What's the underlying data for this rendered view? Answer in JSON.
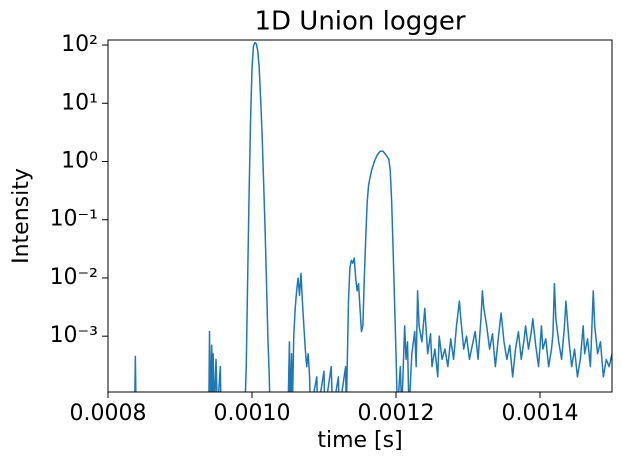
{
  "chart_data": {
    "type": "line",
    "title": "1D Union logger",
    "x_label": "time [s]",
    "y_label": "Intensity",
    "log_y": true,
    "color": "#1f77b4",
    "xlim": [
      0.0008,
      0.0015
    ],
    "xticks": [
      0.0008,
      {
        "value": 0.001,
        "label": "0.0010"
      },
      0.0012,
      0.0014
    ],
    "ylim": [
      0.00011,
      122
    ],
    "yticks": [
      {
        "value": 0.001,
        "label": "10⁻³"
      },
      {
        "value": 0.01,
        "label": "10⁻²"
      },
      {
        "value": 0.1,
        "label": "10⁻¹"
      },
      {
        "value": 1,
        "label": "10⁰"
      },
      {
        "value": 10,
        "label": "10¹"
      },
      {
        "value": 100,
        "label": "10²"
      }
    ],
    "x": [
      0.0008,
      0.000837,
      0.000838,
      0.000839,
      0.00094,
      0.000941,
      0.000942,
      0.000944,
      0.000945,
      0.000946,
      0.000948,
      0.00095,
      0.000952,
      0.000956,
      0.000957,
      0.00099,
      0.000992,
      0.000994,
      0.000996,
      0.000998,
      0.001,
      0.001002,
      0.001004,
      0.001006,
      0.001008,
      0.00101,
      0.001012,
      0.001014,
      0.001016,
      0.001018,
      0.00102,
      0.001022,
      0.001024,
      0.001025,
      0.00105,
      0.001052,
      0.001053,
      0.001055,
      0.001056,
      0.001058,
      0.00106,
      0.001062,
      0.001064,
      0.001066,
      0.001068,
      0.00107,
      0.001072,
      0.001074,
      0.001076,
      0.001078,
      0.00108,
      0.001081,
      0.00109,
      0.001091,
      0.0011,
      0.001101,
      0.00111,
      0.001112,
      0.00112,
      0.001121,
      0.00113,
      0.001131,
      0.001134,
      0.001136,
      0.001138,
      0.00114,
      0.001142,
      0.001144,
      0.001146,
      0.001148,
      0.00115,
      0.001152,
      0.001154,
      0.001156,
      0.001158,
      0.00116,
      0.001162,
      0.001166,
      0.00117,
      0.001174,
      0.001178,
      0.001182,
      0.001186,
      0.00119,
      0.001192,
      0.001194,
      0.001196,
      0.001198,
      0.0012,
      0.001202,
      0.001206,
      0.001208,
      0.001212,
      0.001214,
      0.001216,
      0.001218,
      0.001222,
      0.001226,
      0.001228,
      0.00123,
      0.001232,
      0.001236,
      0.00124,
      0.001244,
      0.001248,
      0.00125,
      0.001254,
      0.001258,
      0.00126,
      0.001264,
      0.001268,
      0.001272,
      0.001276,
      0.00128,
      0.001284,
      0.001288,
      0.00129,
      0.001294,
      0.001298,
      0.001302,
      0.001306,
      0.00131,
      0.001314,
      0.001318,
      0.00132,
      0.001322,
      0.001326,
      0.00133,
      0.001334,
      0.001338,
      0.001342,
      0.001346,
      0.00135,
      0.001354,
      0.001358,
      0.001362,
      0.001366,
      0.00137,
      0.001374,
      0.001378,
      0.00138,
      0.001384,
      0.001388,
      0.00139,
      0.001394,
      0.001398,
      0.001402,
      0.001404,
      0.001408,
      0.001412,
      0.001416,
      0.001418,
      0.00142,
      0.001422,
      0.001426,
      0.00143,
      0.001434,
      0.001436,
      0.00144,
      0.001444,
      0.001448,
      0.001452,
      0.001456,
      0.00146,
      0.001462,
      0.001466,
      0.00147,
      0.001474,
      0.001476,
      0.00148,
      0.001484,
      0.001488,
      0.001492,
      0.001496,
      0.0015
    ],
    "values": [
      0,
      0,
      0.00045,
      0,
      0,
      0.0012,
      0,
      0.0007,
      0,
      0.0005,
      0,
      0.0004,
      0,
      0.0003,
      0,
      0,
      0.0003,
      0.01,
      0.3,
      5,
      40,
      95,
      110,
      105,
      80,
      40,
      12,
      3,
      0.5,
      0.08,
      0.01,
      0.001,
      0.0002,
      0,
      0,
      0.0008,
      0,
      0.0005,
      0,
      0.001,
      0.003,
      0.006,
      0.01,
      0.005,
      0.012,
      0.004,
      0.0015,
      0.0006,
      0.0003,
      0.0005,
      0.0002,
      0,
      0.0002,
      0,
      0.00025,
      0,
      0.0003,
      0,
      0.0002,
      0,
      0.0003,
      0,
      0.004,
      0.015,
      0.02,
      0.018,
      0.022,
      0.01,
      0.006,
      0.008,
      0.003,
      0.0012,
      0.0015,
      0.01,
      0.05,
      0.2,
      0.4,
      0.7,
      1.0,
      1.3,
      1.5,
      1.5,
      1.3,
      1.1,
      0.7,
      0.2,
      0.03,
      0.004,
      0.0005,
      0,
      0.0003,
      0,
      0.0015,
      0.0004,
      0.0008,
      0,
      0.0005,
      0.0012,
      0.0003,
      0.006,
      0.0015,
      0.0008,
      0.003,
      0.0005,
      0.0011,
      0.0003,
      0.0006,
      0.0002,
      0.001,
      0.0004,
      0.0006,
      0.0003,
      0.0009,
      0.0004,
      0.0015,
      0.004,
      0.002,
      0.0006,
      0.001,
      0.0004,
      0.0007,
      0.0012,
      0.0004,
      0.002,
      0.006,
      0.003,
      0.0015,
      0.0006,
      0.0011,
      0.0003,
      0.0009,
      0.0025,
      0.0008,
      0.0004,
      0.0007,
      0.0002,
      0.0006,
      0.0012,
      0.0004,
      0.0009,
      0.0015,
      0.0006,
      0.0012,
      0.002,
      0.0007,
      0.0003,
      0.0015,
      0.0006,
      0.0009,
      0.0003,
      0.0006,
      0.0011,
      0.008,
      0.002,
      0.0008,
      0.0004,
      0.0015,
      0.004,
      0.0009,
      0.0003,
      0.0006,
      0.0002,
      0.0004,
      0.0015,
      0.0005,
      0.0009,
      0.0003,
      0.006,
      0.0015,
      0.0005,
      0.0008,
      0.0002,
      0.0004,
      0.0003,
      0.0005
    ]
  }
}
